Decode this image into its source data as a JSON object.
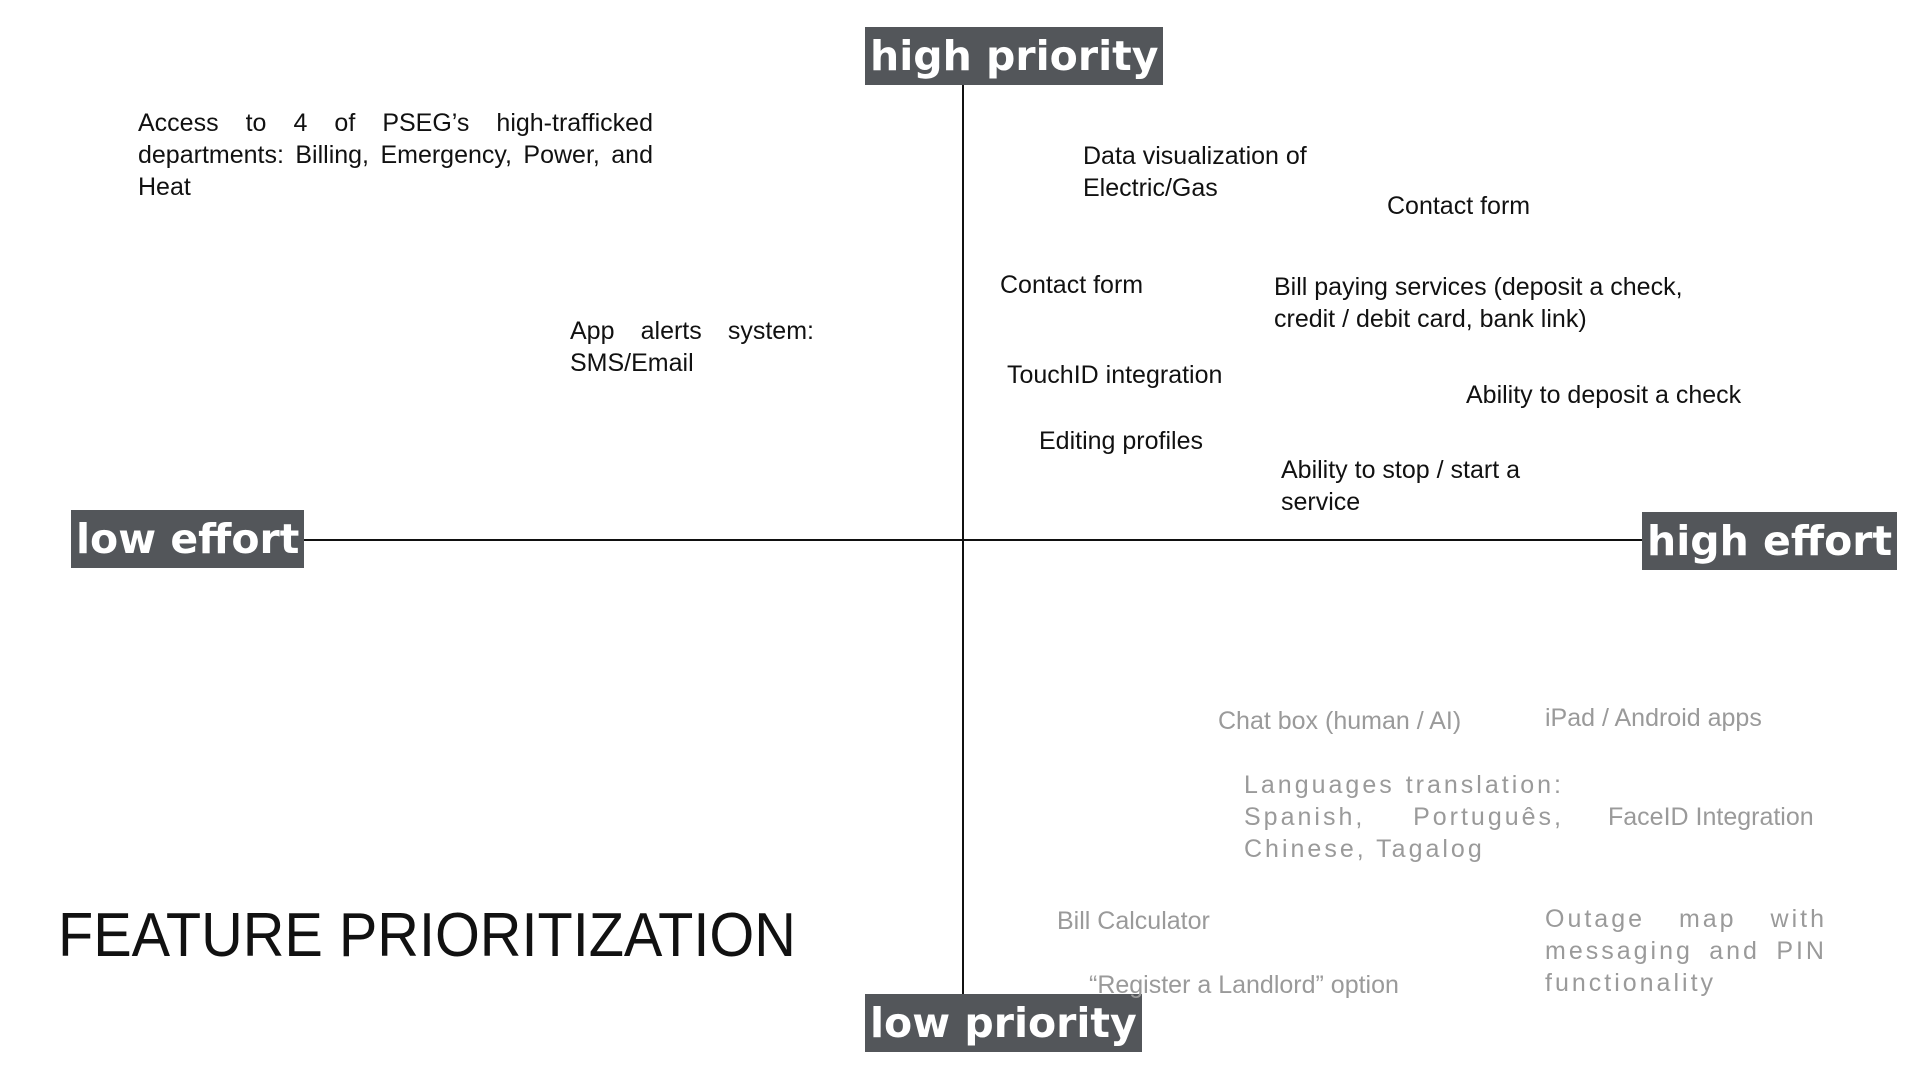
{
  "axes": {
    "high_priority": "high priority",
    "low_priority": "low priority",
    "low_effort": "low effort",
    "high_effort": "high effort"
  },
  "title": "FEATURE PRIORITIZATION",
  "features": {
    "access_departments": "Access to 4 of PSEG’s high-trafficked departments: Billing, Emergency, Power, and Heat",
    "app_alerts": "App alerts system: SMS/Email",
    "data_visualization": "Data visualization of Electric/Gas",
    "contact_form_right": "Contact form",
    "contact_form_left": "Contact form",
    "bill_paying": "Bill paying services (deposit a check, credit / debit card, bank link)",
    "touchid": "TouchID integration",
    "deposit_check": "Ability to deposit a check",
    "editing_profiles": "Editing profiles",
    "stop_start_service": "Ability to stop / start a service",
    "chat_box": "Chat box (human / AI)",
    "ipad_android": "iPad / Android apps",
    "languages": "Languages translation: Spanish, Português, Chinese, Tagalog",
    "faceid": "FaceID Integration",
    "bill_calculator": "Bill Calculator",
    "outage_map": "Outage map with messaging and PIN functionality",
    "register_landlord": "“Register a Landlord” option"
  },
  "colors": {
    "label_bg": "#53565a",
    "high_priority_text": "#111111",
    "low_priority_text": "#9a9a9a"
  }
}
